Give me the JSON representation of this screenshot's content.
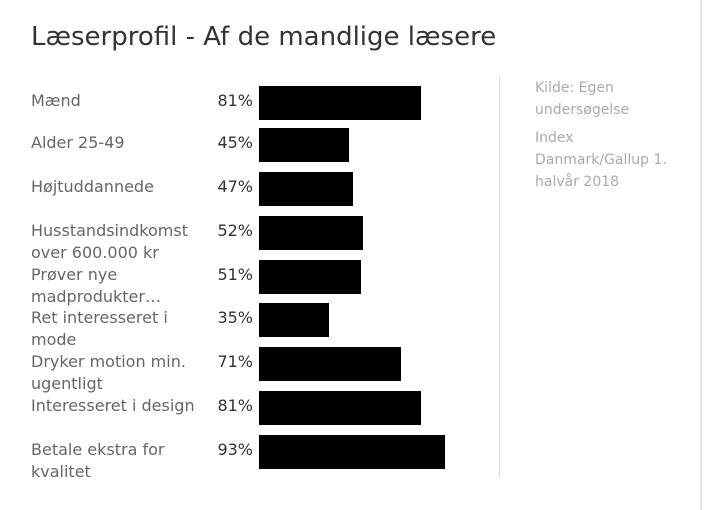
{
  "title": "Læserprofil - Af de mandlige læsere",
  "notes": [
    "Kilde: Egen undersøgelse",
    "Index Danmark/Gallup 1. halvår 2018"
  ],
  "colors": {
    "bar": "#000000",
    "label": "#666666",
    "value": "#333333",
    "note": "#aaaaaa"
  },
  "chart_data": {
    "type": "bar",
    "orientation": "horizontal",
    "categories": [
      "Mænd",
      "Alder 25-49",
      "Højtuddannede",
      "Husstandsindkomst over 600.000 kr",
      "Prøver nye madprodukter…",
      "Ret interesseret i mode",
      "Dryker motion min. ugentligt",
      "Interesseret i design",
      "Betale ekstra for kvalitet"
    ],
    "values": [
      81,
      45,
      47,
      52,
      51,
      35,
      71,
      81,
      93
    ],
    "value_labels": [
      "81%",
      "45%",
      "47%",
      "52%",
      "51%",
      "35%",
      "71%",
      "81%",
      "93%"
    ],
    "xlim": [
      0,
      100
    ],
    "grid": false,
    "legend": "none"
  }
}
